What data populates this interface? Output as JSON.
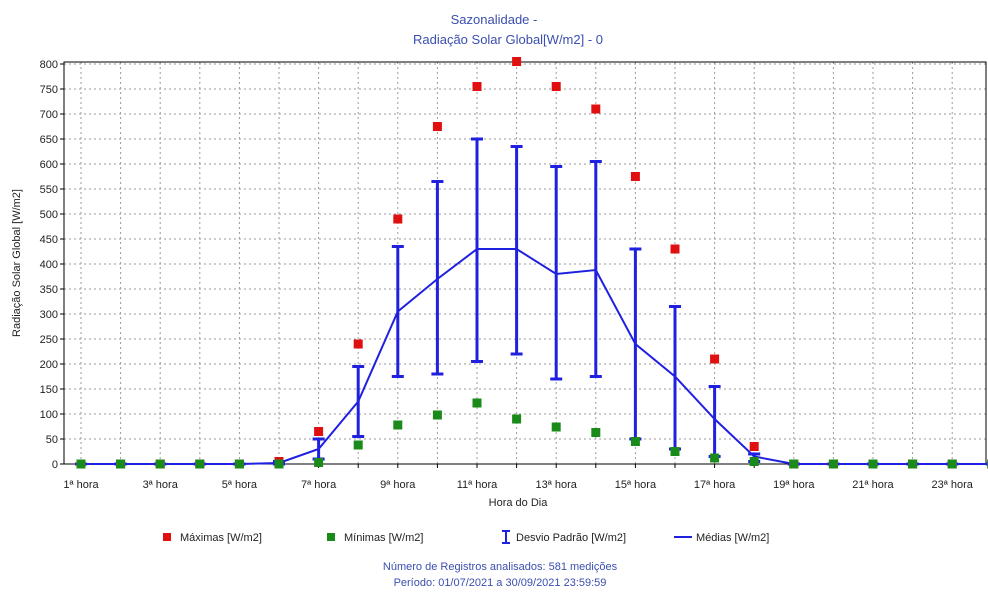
{
  "chart_data": {
    "type": "line",
    "title": "Sazonalidade -",
    "subtitle": "Radiação Solar Global[W/m2] - 0",
    "xlabel": "Hora do Dia",
    "ylabel": "Radiação Solar Global [W/m2]",
    "ylim": [
      0,
      800
    ],
    "yticks": [
      0,
      50,
      100,
      150,
      200,
      250,
      300,
      350,
      400,
      450,
      500,
      550,
      600,
      650,
      700,
      750,
      800
    ],
    "grid": true,
    "legend_position": "bottom",
    "categories": [
      "1ª hora",
      "2ª hora",
      "3ª hora",
      "4ª hora",
      "5ª hora",
      "6ª hora",
      "7ª hora",
      "8ª hora",
      "9ª hora",
      "10ª hora",
      "11ª hora",
      "12ª hora",
      "13ª hora",
      "14ª hora",
      "15ª hora",
      "16ª hora",
      "17ª hora",
      "18ª hora",
      "19ª hora",
      "20ª hora",
      "21ª hora",
      "22ª hora",
      "23ª hora",
      "24ª hora"
    ],
    "x_tick_labels": [
      "1ª hora",
      "",
      "3ª hora",
      "",
      "5ª hora",
      "",
      "7ª hora",
      "",
      "9ª hora",
      "",
      "11ª hora",
      "",
      "13ª hora",
      "",
      "15ª hora",
      "",
      "17ª hora",
      "",
      "19ª hora",
      "",
      "21ª hora",
      "",
      "23ª hora",
      ""
    ],
    "series": [
      {
        "name": "Máximas [W/m2]",
        "kind": "scatter",
        "color": "#e01010",
        "values": [
          0,
          0,
          0,
          0,
          0,
          5,
          65,
          240,
          490,
          675,
          755,
          805,
          755,
          710,
          575,
          430,
          210,
          35,
          0,
          0,
          0,
          0,
          0,
          0
        ]
      },
      {
        "name": "Mínimas [W/m2]",
        "kind": "scatter",
        "color": "#1a8a1a",
        "values": [
          0,
          0,
          0,
          0,
          0,
          0,
          3,
          38,
          78,
          98,
          122,
          90,
          74,
          63,
          45,
          25,
          12,
          5,
          0,
          0,
          0,
          0,
          0,
          0
        ]
      },
      {
        "name": "Médias [W/m2]",
        "kind": "line",
        "color": "#2020e0",
        "values": [
          0,
          0,
          0,
          0,
          0,
          2,
          30,
          125,
          305,
          370,
          430,
          430,
          380,
          388,
          240,
          175,
          90,
          15,
          0,
          0,
          0,
          0,
          0,
          0
        ]
      },
      {
        "name": "Desvio Padrão [W/m2]",
        "kind": "errorbar",
        "color": "#2020e0",
        "lower": [
          0,
          0,
          0,
          0,
          0,
          0,
          10,
          55,
          175,
          180,
          205,
          220,
          170,
          175,
          50,
          30,
          15,
          5,
          0,
          0,
          0,
          0,
          0,
          0
        ],
        "upper": [
          0,
          0,
          0,
          0,
          0,
          5,
          50,
          195,
          435,
          565,
          650,
          635,
          595,
          605,
          430,
          315,
          155,
          20,
          0,
          0,
          0,
          0,
          0,
          0
        ]
      }
    ]
  },
  "legend": {
    "max_label": "Máximas [W/m2]",
    "min_label": "Mínimas [W/m2]",
    "std_label": "Desvio Padrão [W/m2]",
    "mean_label": "Médias [W/m2]"
  },
  "footer": {
    "records": "Número de Registros analisados: 581 medições",
    "period": "Período: 01/07/2021 a 30/09/2021 23:59:59"
  }
}
